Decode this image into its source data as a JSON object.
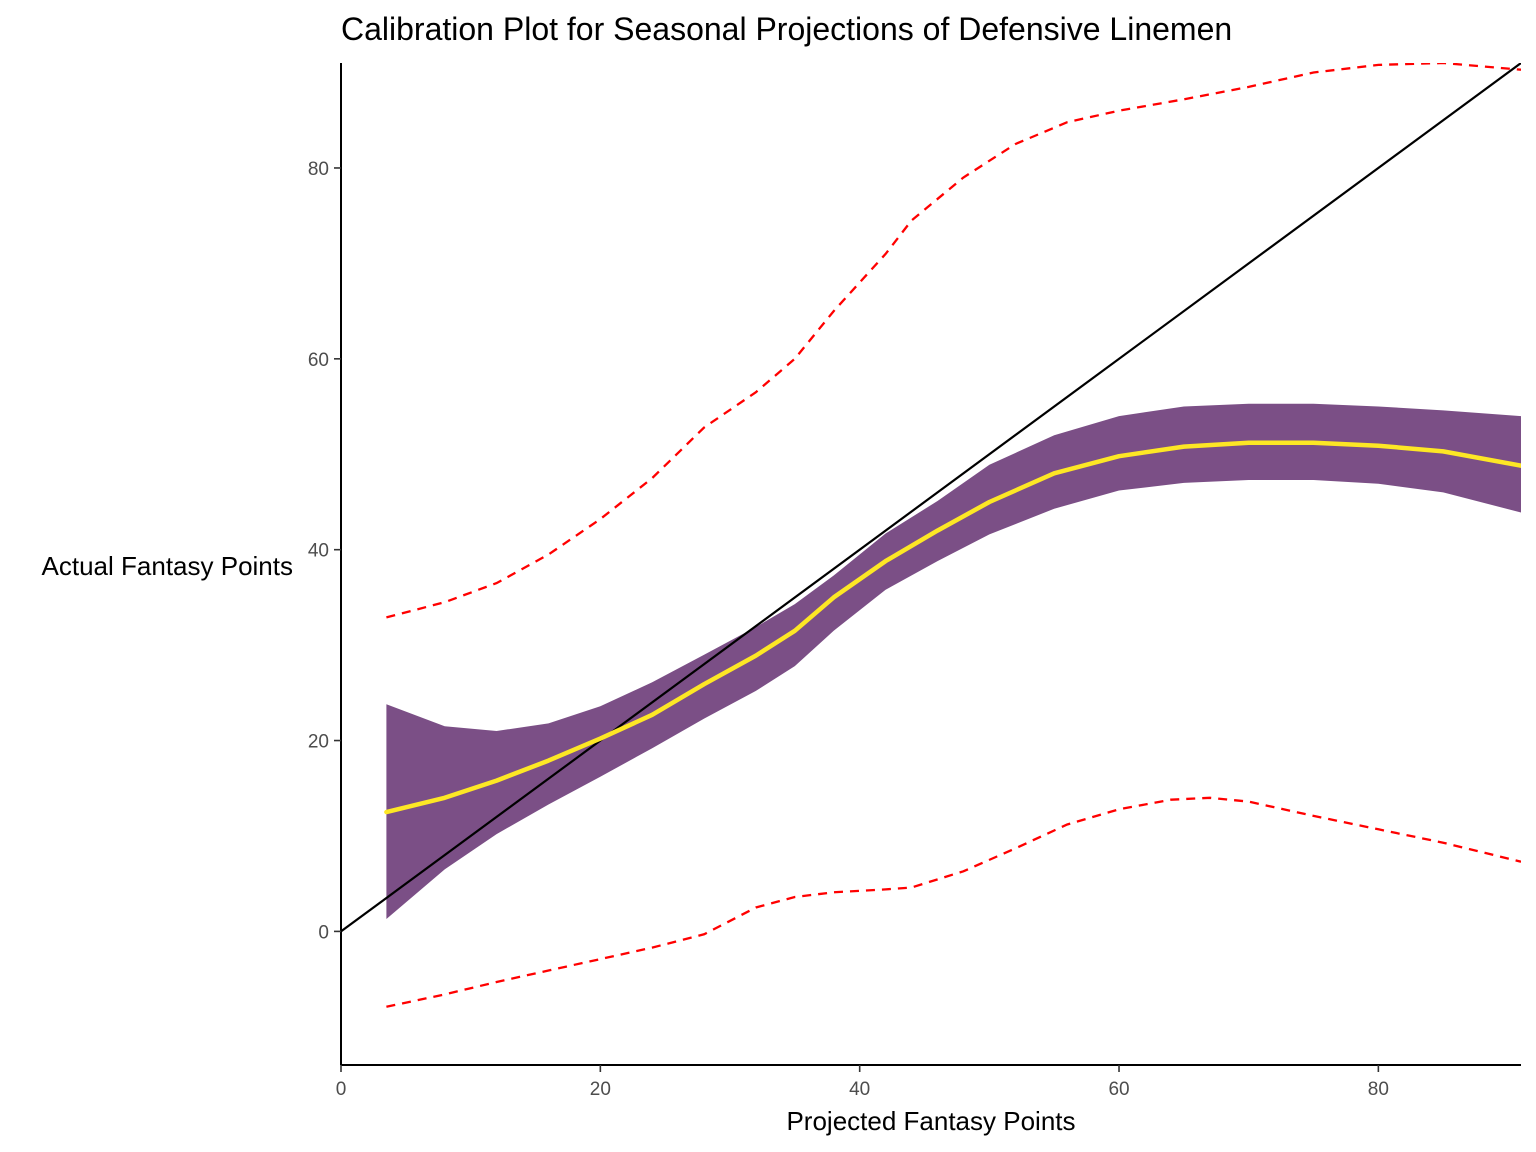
{
  "chart_data": {
    "type": "line",
    "title": "Calibration Plot for Seasonal Projections of Defensive Linemen",
    "xlabel": "Projected Fantasy Points",
    "ylabel": "Actual Fantasy Points",
    "xlim": [
      0,
      91
    ],
    "ylim": [
      -14,
      91
    ],
    "x_ticks": [
      0,
      20,
      40,
      60,
      80
    ],
    "y_ticks": [
      0,
      20,
      40,
      60,
      80
    ],
    "grid": false,
    "legend": "none",
    "series": [
      {
        "kind": "reference-line",
        "color": "#000000",
        "x": [
          0,
          91
        ],
        "y": [
          0,
          91
        ]
      },
      {
        "kind": "confidence-band",
        "color": "#7b4f86",
        "x": [
          3.5,
          8,
          12,
          16,
          20,
          24,
          28,
          32,
          35,
          38,
          42,
          46,
          50,
          55,
          60,
          65,
          70,
          75,
          80,
          85,
          91
        ],
        "lower": [
          1.3,
          6.5,
          10.2,
          13.3,
          16.2,
          19.2,
          22.3,
          25.2,
          27.8,
          31.5,
          35.8,
          38.8,
          41.6,
          44.3,
          46.2,
          47.0,
          47.3,
          47.3,
          46.9,
          46.0,
          43.9
        ],
        "upper": [
          23.8,
          21.5,
          21.0,
          21.8,
          23.6,
          26.1,
          29.0,
          31.9,
          34.3,
          37.3,
          41.7,
          45.1,
          48.9,
          52.0,
          54.0,
          55.0,
          55.3,
          55.3,
          55.0,
          54.6,
          54.0
        ]
      },
      {
        "kind": "smooth-fit",
        "color": "#fde725",
        "x": [
          3.5,
          8,
          12,
          16,
          20,
          24,
          28,
          32,
          35,
          38,
          42,
          46,
          50,
          55,
          60,
          65,
          70,
          75,
          80,
          85,
          91
        ],
        "y": [
          12.5,
          14.0,
          15.8,
          17.9,
          20.2,
          22.7,
          25.9,
          28.9,
          31.5,
          35.0,
          38.8,
          42.0,
          45.0,
          48.0,
          49.8,
          50.8,
          51.2,
          51.2,
          50.9,
          50.3,
          48.8
        ]
      },
      {
        "kind": "upper-prediction-bound",
        "color": "#ff0000",
        "dashed": true,
        "x": [
          3.5,
          8,
          12,
          16,
          20,
          24,
          28,
          32,
          35,
          38,
          42,
          44,
          48,
          52,
          56,
          60,
          65,
          70,
          75,
          80,
          85,
          91
        ],
        "y": [
          32.9,
          34.5,
          36.5,
          39.5,
          43.2,
          47.5,
          52.8,
          56.5,
          60.0,
          65.0,
          71.0,
          74.5,
          79.0,
          82.5,
          84.8,
          86.0,
          87.2,
          88.5,
          90.0,
          90.8,
          91.0,
          90.3
        ]
      },
      {
        "kind": "lower-prediction-bound",
        "color": "#ff0000",
        "dashed": true,
        "x": [
          3.5,
          8,
          12,
          16,
          20,
          24,
          28,
          32,
          35,
          38,
          42,
          44,
          48,
          52,
          56,
          60,
          64,
          67,
          70,
          75,
          80,
          85,
          91
        ],
        "y": [
          -7.9,
          -6.6,
          -5.3,
          -4.1,
          -2.9,
          -1.7,
          -0.3,
          2.5,
          3.6,
          4.1,
          4.4,
          4.6,
          6.3,
          8.7,
          11.2,
          12.8,
          13.8,
          14.0,
          13.6,
          12.1,
          10.7,
          9.3,
          7.3
        ]
      }
    ]
  }
}
